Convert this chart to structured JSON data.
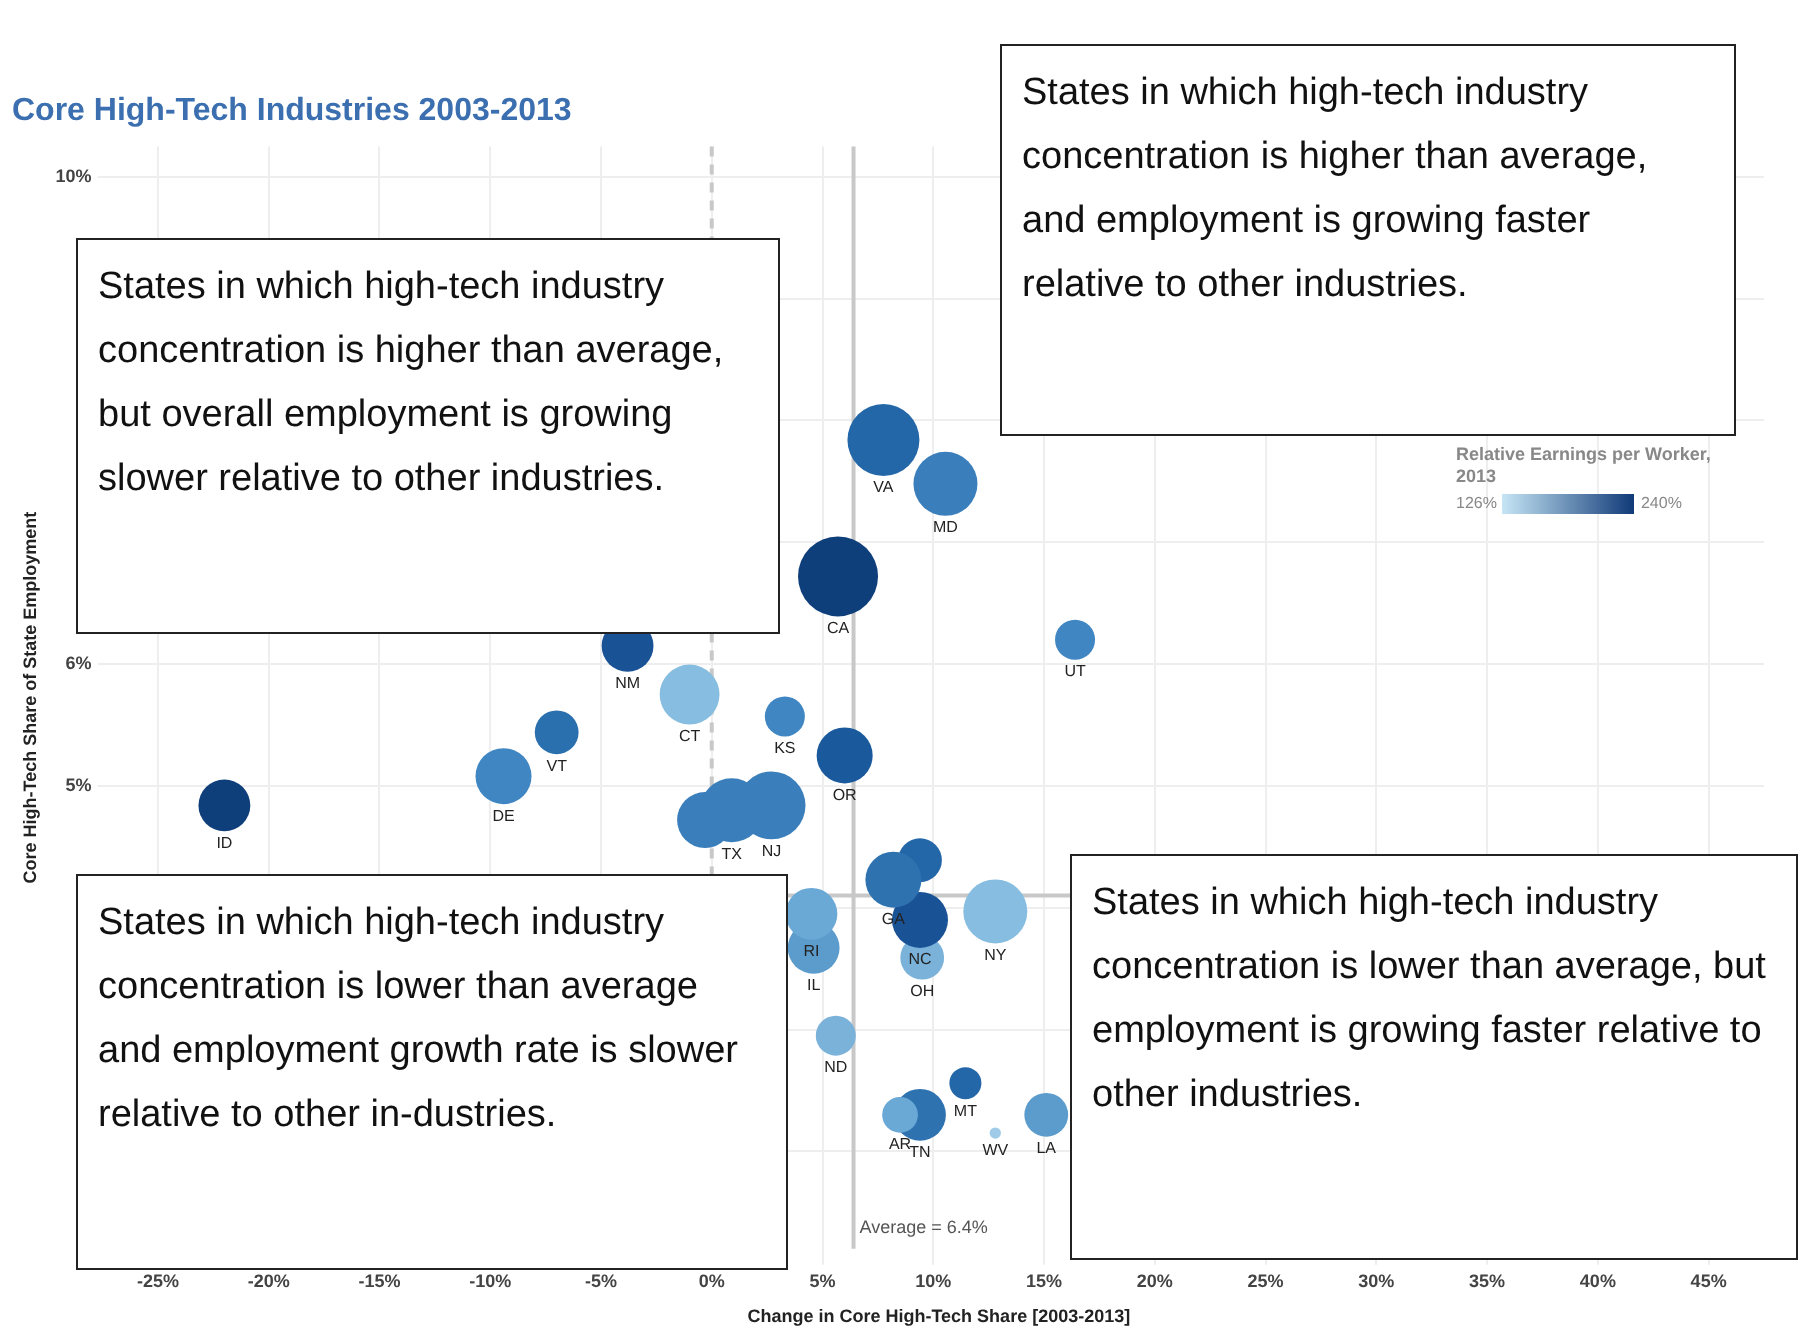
{
  "chart_data": {
    "type": "bubble",
    "title": "Core High-Tech Industries 2003-2013",
    "xlabel": "Change in Core High-Tech Share [2003-2013]",
    "ylabel": "Core High-Tech Share of State Employment",
    "clabel": "Relative Earnings per Worker, 2013",
    "xlim": [
      -27,
      47.5
    ],
    "ylim": [
      1.2,
      10.25
    ],
    "xticks": [
      {
        "value": -25,
        "label": "-25%"
      },
      {
        "value": -20,
        "label": "-20%"
      },
      {
        "value": -15,
        "label": "-15%"
      },
      {
        "value": -10,
        "label": "-10%"
      },
      {
        "value": -5,
        "label": "-5%"
      },
      {
        "value": 0,
        "label": "0%"
      },
      {
        "value": 5,
        "label": "5%"
      },
      {
        "value": 10,
        "label": "10%"
      },
      {
        "value": 15,
        "label": "15%"
      },
      {
        "value": 20,
        "label": "20%"
      },
      {
        "value": 25,
        "label": "25%"
      },
      {
        "value": 30,
        "label": "30%"
      },
      {
        "value": 35,
        "label": "35%"
      },
      {
        "value": 40,
        "label": "40%"
      },
      {
        "value": 45,
        "label": "45%"
      }
    ],
    "yticks": [
      {
        "value": 2,
        "label": null
      },
      {
        "value": 3,
        "label": null
      },
      {
        "value": 4,
        "label": null
      },
      {
        "value": 5,
        "label": "5%"
      },
      {
        "value": 6,
        "label": "6%"
      },
      {
        "value": 7,
        "label": null
      },
      {
        "value": 8,
        "label": null
      },
      {
        "value": 9,
        "label": null
      },
      {
        "value": 10,
        "label": "10%"
      }
    ],
    "grid": true,
    "legend": false,
    "ref_lines": [
      {
        "axis": "x",
        "value": 6.4,
        "label": "Average = 6.4%",
        "color": "#c8c8c8"
      },
      {
        "axis": "x",
        "value": 0,
        "color": "#c8c8c8",
        "line_style": "dashed"
      },
      {
        "axis": "y",
        "value": 4.1,
        "color": "#c8c8c8"
      }
    ],
    "series": [
      {
        "name": "VA",
        "x": [
          7.75
        ],
        "values": [
          7.84
        ],
        "sizes": [
          0.81
        ],
        "color": "#2467a8"
      },
      {
        "name": "MD",
        "x": [
          10.55
        ],
        "values": [
          7.48
        ],
        "sizes": [
          0.64
        ],
        "color": "#3a7fbb"
      },
      {
        "name": "CA",
        "x": [
          5.7
        ],
        "values": [
          6.72
        ],
        "sizes": [
          1
        ],
        "color": "#0f3f7a"
      },
      {
        "name": "UT",
        "x": [
          16.4
        ],
        "values": [
          6.2
        ],
        "sizes": [
          0.25
        ],
        "color": "#3f86c2"
      },
      {
        "name": "NM",
        "x": [
          -3.8
        ],
        "values": [
          6.15
        ],
        "sizes": [
          0.42
        ],
        "color": "#1a5296"
      },
      {
        "name": "CT",
        "x": [
          -1.0
        ],
        "values": [
          5.75
        ],
        "sizes": [
          0.56
        ],
        "color": "#86bde0"
      },
      {
        "name": "KS",
        "x": [
          3.3
        ],
        "values": [
          5.57
        ],
        "sizes": [
          0.25
        ],
        "color": "#3f86c2"
      },
      {
        "name": "OR",
        "x": [
          6.0
        ],
        "values": [
          5.25
        ],
        "sizes": [
          0.49
        ],
        "color": "#1a5a9c"
      },
      {
        "name": "VT",
        "x": [
          -7.0
        ],
        "values": [
          5.44
        ],
        "sizes": [
          0.3
        ],
        "color": "#2a6fae"
      },
      {
        "name": "DE",
        "x": [
          -9.4
        ],
        "values": [
          5.08
        ],
        "sizes": [
          0.49
        ],
        "color": "#3f86c2"
      },
      {
        "name": "ID",
        "x": [
          -22.0
        ],
        "values": [
          4.84
        ],
        "sizes": [
          0.42
        ],
        "color": "#0f3f7a"
      },
      {
        "x": [
          -0.3
        ],
        "values": [
          4.72
        ],
        "sizes": [
          0.49
        ],
        "color": "#3a7fbb"
      },
      {
        "name": "TX",
        "x": [
          0.9
        ],
        "values": [
          4.8
        ],
        "sizes": [
          0.64
        ],
        "color": "#3a7fbb"
      },
      {
        "name": "NJ",
        "x": [
          2.7
        ],
        "values": [
          4.84
        ],
        "sizes": [
          0.72
        ],
        "color": "#3a7fbb"
      },
      {
        "name": "GA",
        "x": [
          8.2
        ],
        "values": [
          4.23
        ],
        "sizes": [
          0.49
        ],
        "color": "#2e72b0"
      },
      {
        "x": [
          9.4
        ],
        "values": [
          4.39
        ],
        "sizes": [
          0.3
        ],
        "color": "#2467a8"
      },
      {
        "name": "NC",
        "x": [
          9.4
        ],
        "values": [
          3.9
        ],
        "sizes": [
          0.49
        ],
        "color": "#1a5296"
      },
      {
        "name": "OH",
        "x": [
          9.5
        ],
        "values": [
          3.59
        ],
        "sizes": [
          0.3
        ],
        "color": "#7ab2da"
      },
      {
        "name": "NY",
        "x": [
          12.8
        ],
        "values": [
          3.97
        ],
        "sizes": [
          0.64
        ],
        "color": "#86bde0"
      },
      {
        "name": "RI",
        "x": [
          4.5
        ],
        "values": [
          3.95
        ],
        "sizes": [
          0.42
        ],
        "color": "#6aa8d6"
      },
      {
        "name": "IL",
        "x": [
          4.6
        ],
        "values": [
          3.67
        ],
        "sizes": [
          0.42
        ],
        "color": "#5c9ccc"
      },
      {
        "name": "ND",
        "x": [
          5.6
        ],
        "values": [
          2.95
        ],
        "sizes": [
          0.25
        ],
        "color": "#7ab2da"
      },
      {
        "name": "MT",
        "x": [
          11.45
        ],
        "values": [
          2.56
        ],
        "sizes": [
          0.16
        ],
        "color": "#2467a8"
      },
      {
        "name": "AR",
        "x": [
          8.5
        ],
        "values": [
          2.3
        ],
        "sizes": [
          0.2
        ],
        "color": "#6aa8d6"
      },
      {
        "name": "TN",
        "x": [
          9.4
        ],
        "values": [
          2.3
        ],
        "sizes": [
          0.42
        ],
        "color": "#2e72b0"
      },
      {
        "name": "WV",
        "x": [
          12.8
        ],
        "values": [
          2.15
        ],
        "sizes": [
          0.02
        ],
        "color": "#9fcbe8"
      },
      {
        "name": "LA",
        "x": [
          15.1
        ],
        "values": [
          2.3
        ],
        "sizes": [
          0.3
        ],
        "color": "#5c9ccc"
      }
    ],
    "annotations": [
      "States in which high-tech industry concentration is higher than average, but overall employment is growing slower relative to other industries.",
      "States in which high-tech industry concentration is higher than average, and employment is growing faster relative to other industries.",
      "States in which high-tech industry concentration is lower than average and employment growth rate is slower relative to other in-dustries.",
      "States in which high-tech industry concentration is lower than average, but employment is growing faster relative to other industries.",
      "126%",
      "240%"
    ]
  }
}
